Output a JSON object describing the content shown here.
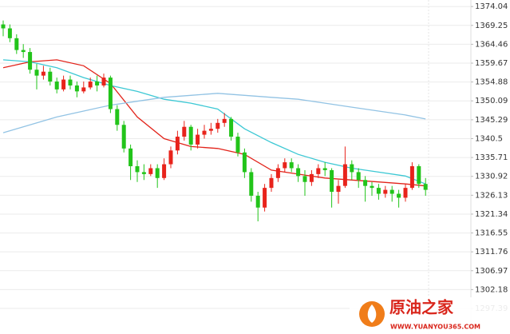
{
  "chart_data": {
    "type": "candlestick",
    "ylim": [
      1290.9,
      1375.7
    ],
    "yticks": [
      1374.04,
      1369.25,
      1364.46,
      1359.67,
      1354.88,
      1350.09,
      1345.29,
      1340.5,
      1335.71,
      1330.92,
      1326.13,
      1321.34,
      1316.55,
      1311.76,
      1306.97,
      1302.18,
      1297.39
    ],
    "grid": true,
    "up_color": "#e8231b",
    "down_color": "#22c41a",
    "open": [
      1369.5,
      1368.5,
      1366.0,
      1363.0,
      1362.5,
      1358.0,
      1356.5,
      1357.5,
      1355.0,
      1353.0,
      1355.5,
      1354.0,
      1352.5,
      1353.5,
      1355.0,
      1354.0,
      1356.0,
      1348.0,
      1344.0,
      1338.0,
      1333.5,
      1332.0,
      1331.5,
      1333.0,
      1330.5,
      1334.0,
      1337.5,
      1341.0,
      1343.5,
      1339.0,
      1341.5,
      1342.5,
      1343.0,
      1344.5,
      1345.5,
      1341.0,
      1337.0,
      1332.0,
      1326.0,
      1323.0,
      1328.0,
      1330.5,
      1333.0,
      1334.5,
      1333.0,
      1331.0,
      1329.5,
      1331.5,
      1333.0,
      1332.5,
      1327.0,
      1328.5,
      1334.0,
      1332.0,
      1330.0,
      1328.5,
      1328.0,
      1326.5,
      1327.5,
      1326.5,
      1325.5,
      1328.0,
      1333.5,
      1329.0
    ],
    "high": [
      1370.5,
      1369.5,
      1367.0,
      1364.5,
      1363.5,
      1359.5,
      1359.0,
      1358.5,
      1356.0,
      1356.5,
      1356.5,
      1355.0,
      1355.0,
      1356.0,
      1356.5,
      1357.0,
      1356.5,
      1349.0,
      1345.0,
      1339.0,
      1335.0,
      1334.0,
      1334.0,
      1334.0,
      1335.5,
      1338.5,
      1342.5,
      1345.0,
      1344.0,
      1343.0,
      1344.0,
      1344.5,
      1345.5,
      1347.0,
      1346.0,
      1342.0,
      1338.0,
      1333.0,
      1327.0,
      1329.0,
      1331.5,
      1334.0,
      1335.5,
      1335.5,
      1334.0,
      1332.5,
      1332.5,
      1334.0,
      1334.5,
      1333.0,
      1330.0,
      1338.5,
      1335.0,
      1333.0,
      1331.0,
      1329.5,
      1329.0,
      1328.5,
      1328.5,
      1327.5,
      1329.0,
      1334.5,
      1334.0,
      1330.5
    ],
    "low": [
      1366.5,
      1365.0,
      1362.0,
      1361.0,
      1357.0,
      1353.0,
      1355.5,
      1354.0,
      1352.0,
      1352.5,
      1353.0,
      1351.0,
      1352.0,
      1353.0,
      1352.5,
      1353.5,
      1347.0,
      1342.5,
      1337.0,
      1330.0,
      1329.5,
      1330.0,
      1331.0,
      1328.0,
      1330.0,
      1333.0,
      1336.5,
      1340.0,
      1337.5,
      1338.0,
      1340.5,
      1341.5,
      1342.0,
      1343.5,
      1340.0,
      1336.0,
      1330.5,
      1324.5,
      1319.5,
      1322.0,
      1327.0,
      1329.5,
      1332.0,
      1332.0,
      1329.5,
      1326.0,
      1328.5,
      1330.5,
      1331.0,
      1323.0,
      1324.0,
      1328.0,
      1330.0,
      1328.0,
      1324.5,
      1326.0,
      1325.0,
      1325.5,
      1324.5,
      1323.0,
      1324.5,
      1327.5,
      1328.0,
      1326.0
    ],
    "close": [
      1368.5,
      1366.0,
      1363.0,
      1362.5,
      1358.0,
      1356.5,
      1357.5,
      1355.0,
      1353.0,
      1355.5,
      1354.0,
      1352.5,
      1353.5,
      1355.0,
      1354.0,
      1356.0,
      1348.0,
      1344.0,
      1338.0,
      1333.5,
      1332.0,
      1331.5,
      1333.0,
      1330.5,
      1334.0,
      1337.5,
      1341.0,
      1343.5,
      1339.0,
      1341.5,
      1342.5,
      1343.0,
      1344.5,
      1345.5,
      1341.0,
      1337.0,
      1332.0,
      1326.0,
      1323.0,
      1328.0,
      1330.5,
      1333.0,
      1334.5,
      1333.0,
      1331.0,
      1329.5,
      1331.5,
      1333.0,
      1332.5,
      1327.0,
      1328.5,
      1334.0,
      1332.0,
      1330.0,
      1328.5,
      1328.0,
      1326.5,
      1327.5,
      1326.5,
      1325.5,
      1328.0,
      1333.5,
      1329.0,
      1327.5
    ],
    "lines": [
      {
        "color": "#e2231a",
        "x": [
          0,
          4,
          8,
          12,
          16,
          20,
          24,
          28,
          32,
          36,
          40,
          44,
          48,
          52,
          56,
          60,
          63
        ],
        "values": [
          1358.5,
          1360.0,
          1360.5,
          1359.0,
          1354.5,
          1346.0,
          1340.5,
          1338.5,
          1338.0,
          1336.5,
          1332.5,
          1331.5,
          1330.5,
          1330.0,
          1329.5,
          1329.0,
          1328.5
        ]
      },
      {
        "color": "#3cc8d4",
        "x": [
          0,
          4,
          8,
          12,
          16,
          20,
          24,
          28,
          32,
          36,
          40,
          44,
          48,
          52,
          56,
          60,
          63
        ],
        "values": [
          1360.5,
          1360.0,
          1358.5,
          1356.0,
          1354.0,
          1352.5,
          1350.5,
          1349.5,
          1348.0,
          1343.0,
          1339.5,
          1336.5,
          1334.5,
          1333.0,
          1332.0,
          1331.0,
          1329.0
        ]
      },
      {
        "color": "#92c3e4",
        "x": [
          0,
          4,
          8,
          12,
          16,
          20,
          24,
          28,
          32,
          36,
          40,
          44,
          48,
          52,
          56,
          60,
          63
        ],
        "values": [
          1342.0,
          1344.0,
          1346.0,
          1347.5,
          1349.0,
          1350.0,
          1351.0,
          1351.5,
          1352.0,
          1351.5,
          1351.0,
          1350.5,
          1349.5,
          1348.5,
          1347.5,
          1346.5,
          1345.5
        ]
      }
    ],
    "watermark": {
      "name": "原油之家",
      "url": "WWW.YUANYOU365.COM"
    }
  }
}
